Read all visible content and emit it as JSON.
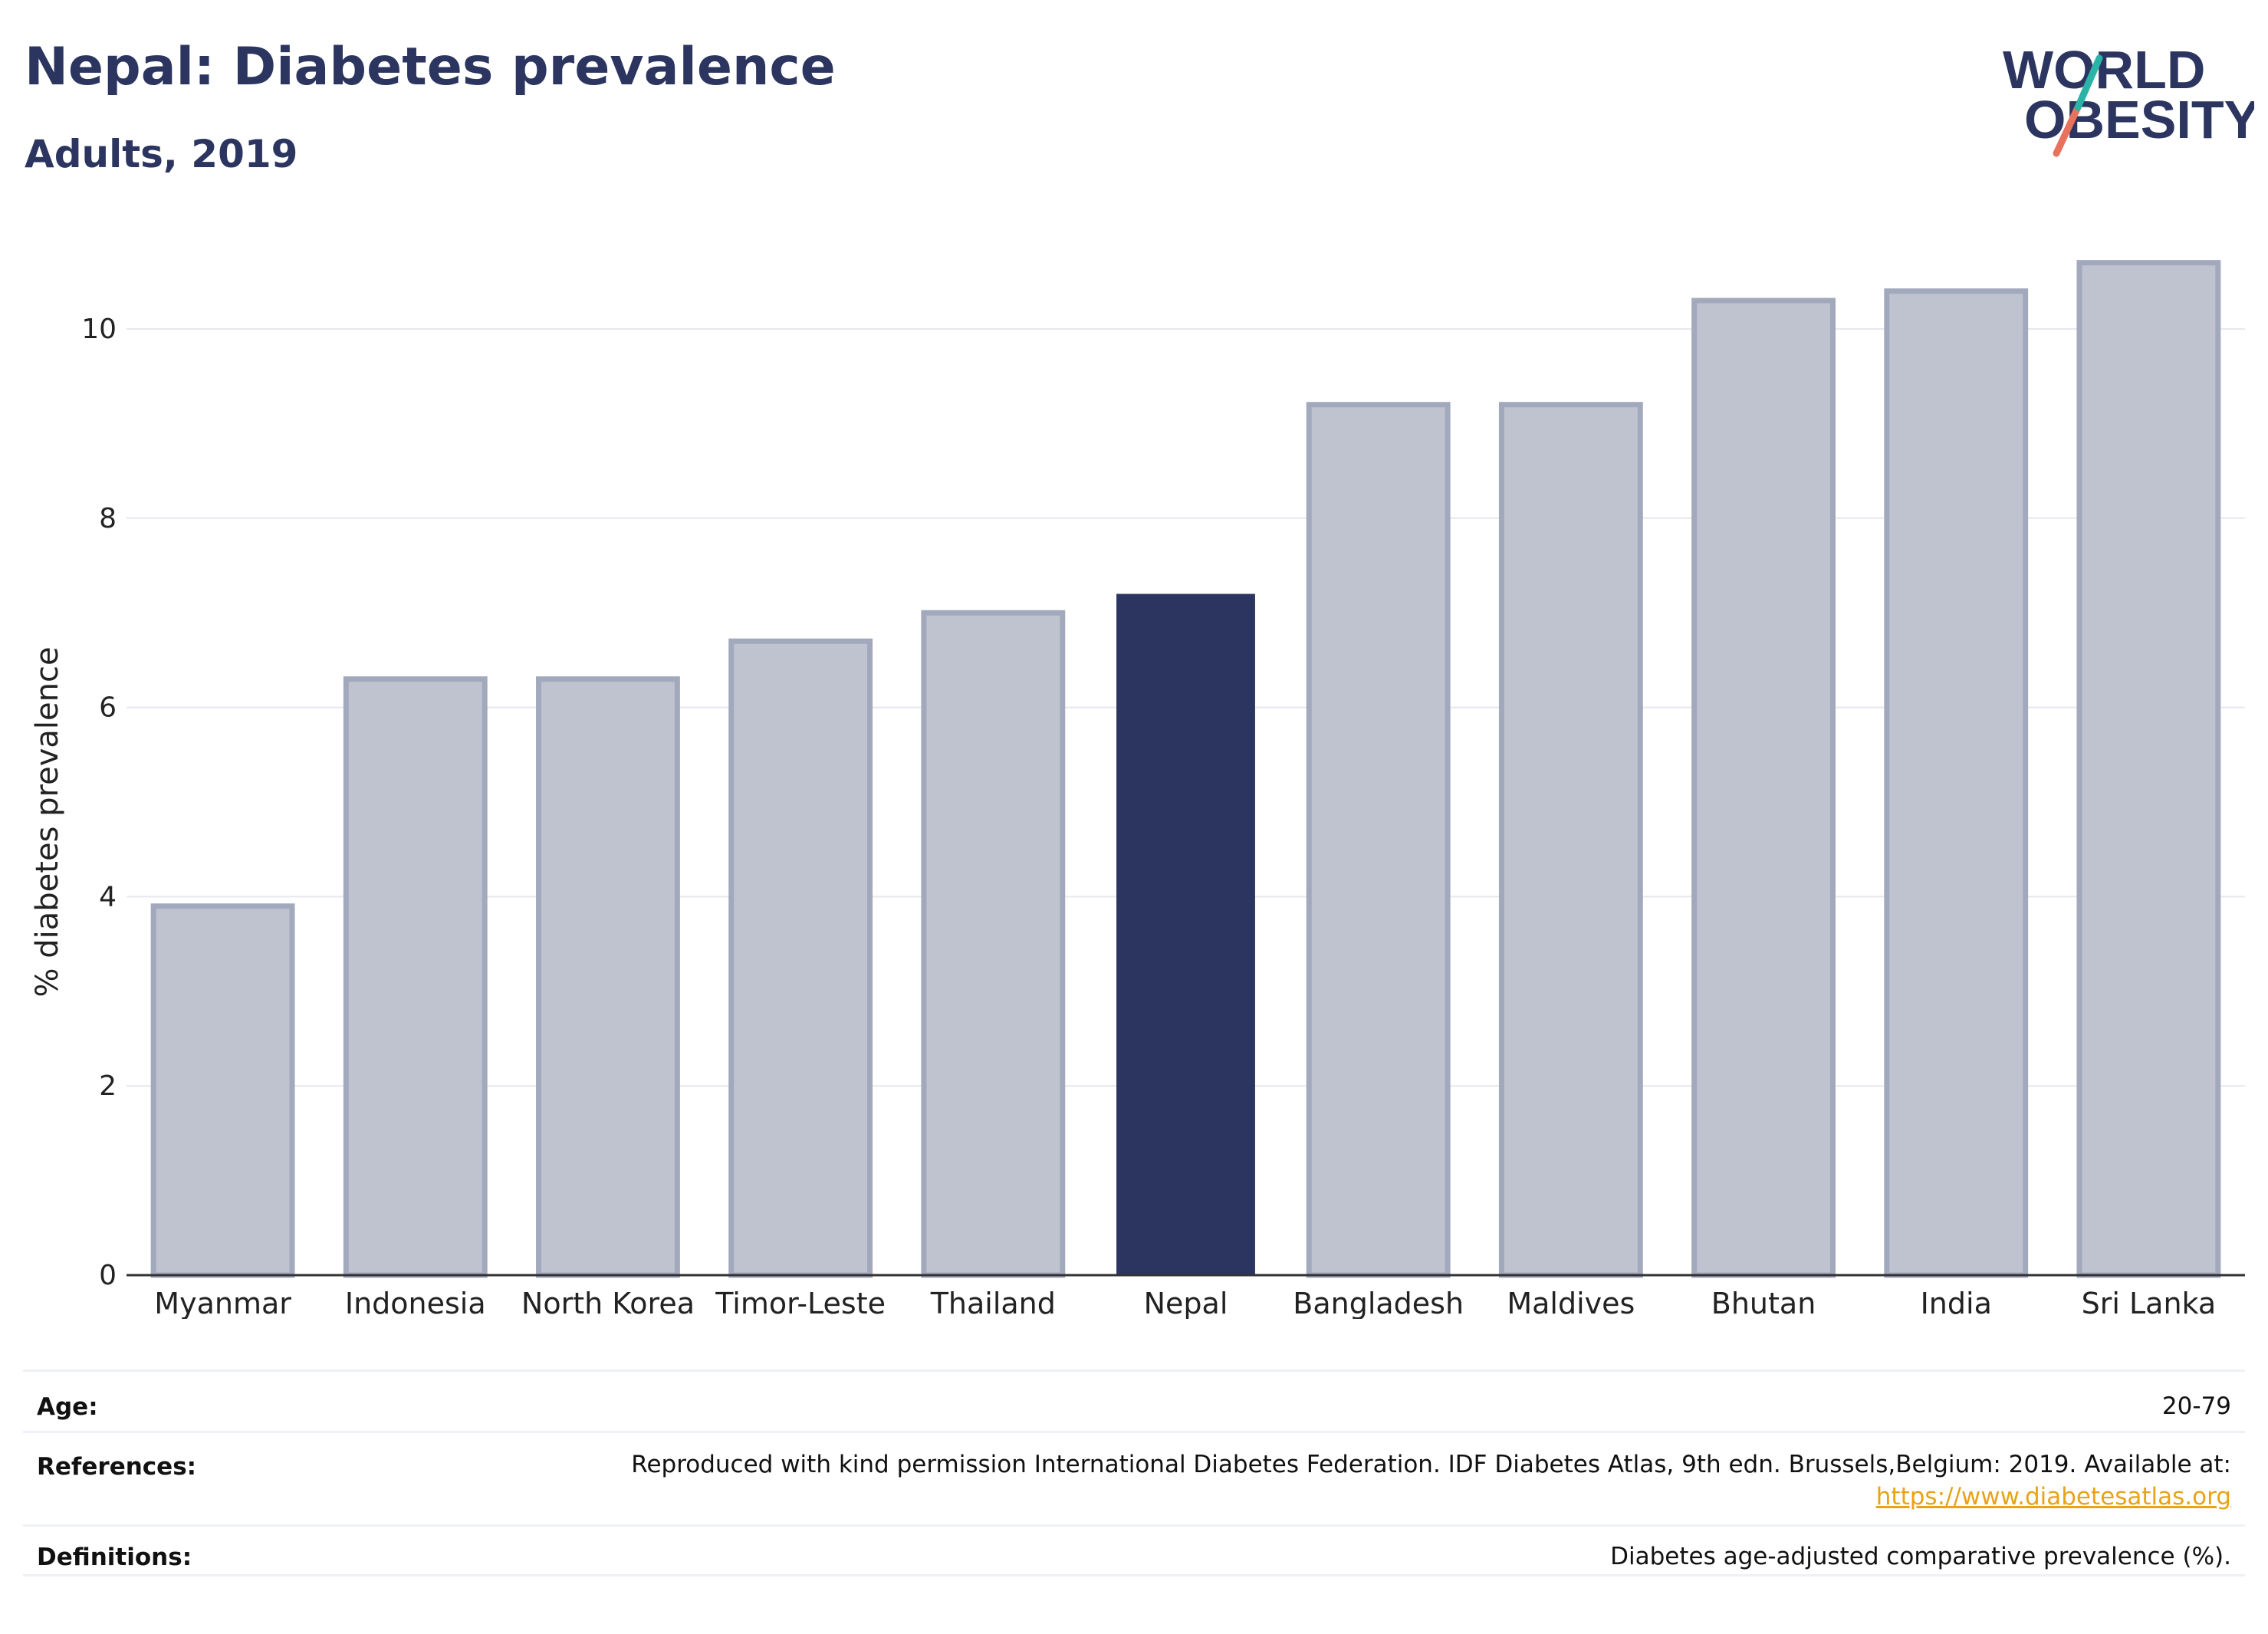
{
  "header": {
    "title": "Nepal: Diabetes prevalence",
    "subtitle": "Adults, 2019"
  },
  "logo": {
    "line1": "WORLD",
    "line2": "OBESITY"
  },
  "chart_data": {
    "type": "bar",
    "categories": [
      "Myanmar",
      "Indonesia",
      "North Korea",
      "Timor-Leste",
      "Thailand",
      "Nepal",
      "Bangladesh",
      "Maldives",
      "Bhutan",
      "India",
      "Sri Lanka"
    ],
    "values": [
      3.9,
      6.3,
      6.3,
      6.7,
      7.0,
      7.2,
      9.2,
      9.2,
      10.3,
      10.4,
      10.7
    ],
    "highlight": "Nepal",
    "ylabel": "% diabetes prevalence",
    "xlabel": "",
    "ylim": [
      0,
      11.2
    ],
    "yticks": [
      0,
      2,
      4,
      6,
      8,
      10
    ],
    "grid": true,
    "colors": {
      "highlight_fill": "#2b355f",
      "bar_fill": "#bfc3cf",
      "bar_stroke": "#a3a9bd",
      "grid": "#e6e8ee",
      "axis": "#333333"
    }
  },
  "info": {
    "age_label": "Age:",
    "age_value": "20-79",
    "references_label": "References:",
    "references_text": "Reproduced with kind permission International Diabetes Federation. IDF Diabetes Atlas, 9th edn. Brussels,Belgium: 2019. Available at:",
    "references_link": "https://www.diabetesatlas.org",
    "definitions_label": "Definitions:",
    "definitions_value": "Diabetes age-adjusted comparative prevalence (%)."
  }
}
